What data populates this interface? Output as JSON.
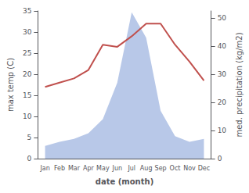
{
  "chart_data": {
    "type": "line",
    "xlabel": "date (month)",
    "ylabel": "max temp (C)",
    "y2label": "med. precipitation (kg/m2)",
    "categories": [
      "Jan",
      "Feb",
      "Mar",
      "Apr",
      "May",
      "Jun",
      "Jul",
      "Aug",
      "Sep",
      "Oct",
      "Nov",
      "Dec"
    ],
    "series": [
      {
        "type": "area",
        "axis": "y2",
        "color": "#b8c8e8",
        "values": [
          4.5,
          6,
          7,
          9,
          14,
          27,
          52,
          43,
          17,
          8,
          6,
          7
        ]
      },
      {
        "type": "line",
        "color": "#c0504d",
        "values": [
          17,
          18,
          19,
          21,
          27,
          26.5,
          29,
          32,
          32,
          27,
          23,
          18.5
        ]
      }
    ],
    "ylim": [
      0,
      35
    ],
    "yticks": [
      0,
      5,
      10,
      15,
      20,
      25,
      30,
      35
    ],
    "y2lim": [
      0,
      52.5
    ],
    "y2ticks": [
      0,
      10,
      20,
      30,
      40,
      50
    ],
    "grid": false
  }
}
